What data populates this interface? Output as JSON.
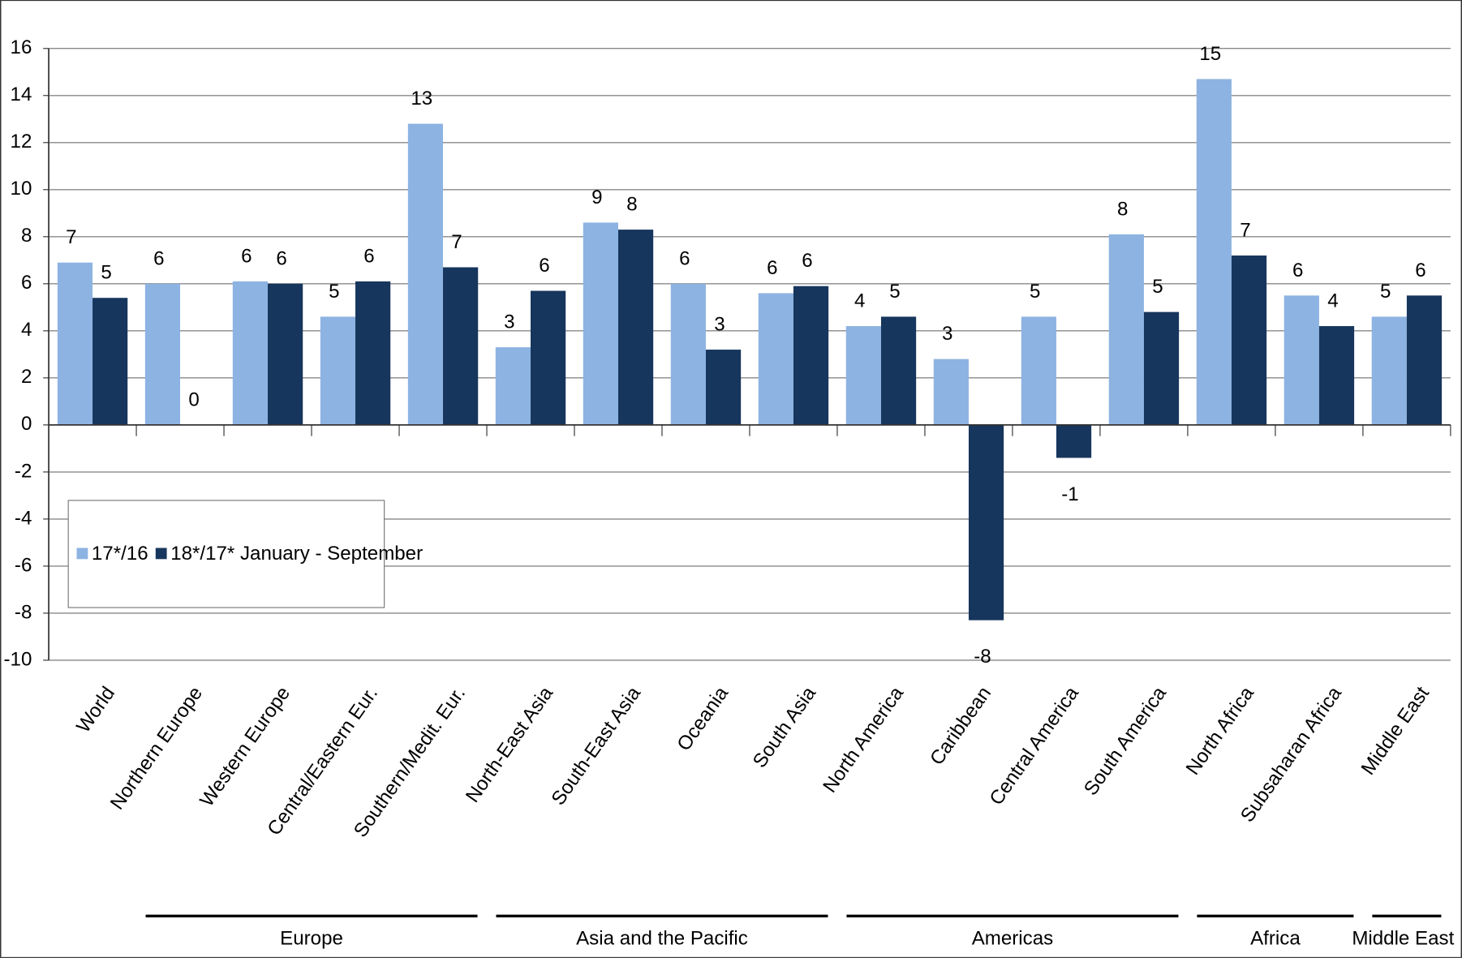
{
  "chart_data": {
    "type": "bar",
    "categories": [
      "World",
      "Northern Europe",
      "Western Europe",
      "Central/Eastern Eur.",
      "Southern/Medit. Eur.",
      "North-East Asia",
      "South-East Asia",
      "Oceania",
      "South Asia",
      "North America",
      "Caribbean",
      "Central America",
      "South America",
      "North Africa",
      "Subsaharan Africa",
      "Middle East"
    ],
    "series": [
      {
        "name": "17*/16",
        "color": "#8db3e2",
        "values": [
          6.9,
          6.0,
          6.1,
          4.6,
          12.8,
          3.3,
          8.6,
          6.0,
          5.6,
          4.2,
          2.8,
          4.6,
          8.1,
          14.7,
          5.5,
          4.6
        ],
        "value_labels": [
          "7",
          "6",
          "6",
          "5",
          "13",
          "3",
          "9",
          "6",
          "6",
          "4",
          "3",
          "5",
          "8",
          "15",
          "6",
          "5"
        ]
      },
      {
        "name": "18*/17* January - September",
        "color": "#17365d",
        "values": [
          5.4,
          0,
          6.0,
          6.1,
          6.7,
          5.7,
          8.3,
          3.2,
          5.9,
          4.6,
          -8.3,
          -1.4,
          4.8,
          7.2,
          4.2,
          5.5
        ],
        "value_labels": [
          "5",
          "0",
          "6",
          "6",
          "7",
          "6",
          "8",
          "3",
          "6",
          "5",
          "-8",
          "-1",
          "5",
          "7",
          "4",
          "6"
        ]
      }
    ],
    "groups": [
      {
        "name": "Europe",
        "span": [
          1,
          4
        ]
      },
      {
        "name": "Asia and the Pacific",
        "span": [
          5,
          8
        ]
      },
      {
        "name": "Americas",
        "span": [
          9,
          12
        ]
      },
      {
        "name": "Africa",
        "span": [
          13,
          14
        ]
      },
      {
        "name": "Middle East",
        "span": [
          15,
          15
        ]
      }
    ],
    "ylim": [
      -10,
      16
    ],
    "yticks": [
      -10,
      -8,
      -6,
      -4,
      -2,
      0,
      2,
      4,
      6,
      8,
      10,
      12,
      14,
      16
    ],
    "grid": true,
    "legend_position": "left"
  }
}
